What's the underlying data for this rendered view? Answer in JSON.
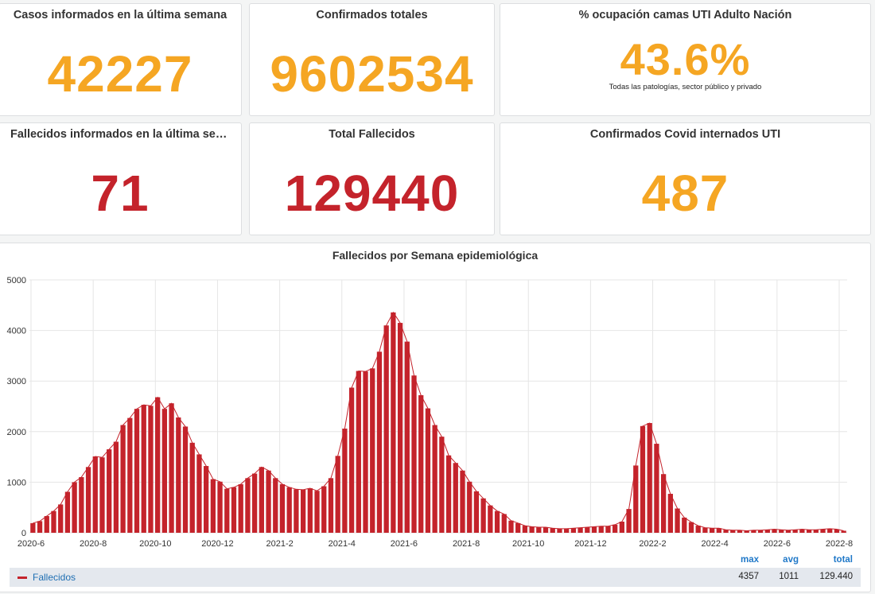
{
  "colors": {
    "orange": "#f5a623",
    "red": "#c4232b",
    "bar": "#c4232b",
    "bar_stripe": "#ffffff",
    "line": "#c4232b",
    "grid": "#e6e6e6",
    "axis_text": "#333333",
    "legend_text": "#1f6fb3",
    "legend_head": "#1f78c8"
  },
  "stats": {
    "casos_semana": {
      "title": "Casos informados en la última semana",
      "value": "42227"
    },
    "confirmados_totales": {
      "title": "Confirmados totales",
      "value": "9602534"
    },
    "ocupacion_uti": {
      "title": "% ocupación camas UTI Adulto Nación",
      "value": "43.6%",
      "subtitle": "Todas las patologías, sector público y privado"
    },
    "fallecidos_semana": {
      "title": "Fallecidos informados en la última semana",
      "value": "71"
    },
    "total_fallecidos": {
      "title": "Total Fallecidos",
      "value": "129440"
    },
    "internados_uti": {
      "title": "Confirmados Covid internados UTI",
      "value": "487"
    }
  },
  "legend": {
    "series_name": "Fallecidos",
    "max_label": "max",
    "avg_label": "avg",
    "total_label": "total",
    "max_value": "4357",
    "avg_value": "1011",
    "total_value": "129.440"
  },
  "chart_data": {
    "type": "bar",
    "title": "Fallecidos por Semana epidemiológica",
    "xlabel": "",
    "ylabel": "",
    "ylim": [
      0,
      5000
    ],
    "yticks": [
      0,
      1000,
      2000,
      3000,
      4000,
      5000
    ],
    "xticks": [
      "2020-6",
      "2020-8",
      "2020-10",
      "2020-12",
      "2021-2",
      "2021-4",
      "2021-6",
      "2021-8",
      "2021-10",
      "2021-12",
      "2022-2",
      "2022-4",
      "2022-6",
      "2022-8"
    ],
    "grid": true,
    "legend_position": "bottom",
    "series": [
      {
        "name": "Fallecidos",
        "overlay": "line",
        "values": [
          190,
          230,
          330,
          430,
          560,
          810,
          1000,
          1100,
          1300,
          1510,
          1490,
          1650,
          1800,
          2130,
          2270,
          2450,
          2530,
          2510,
          2680,
          2450,
          2560,
          2280,
          2100,
          1780,
          1550,
          1320,
          1060,
          1010,
          870,
          900,
          960,
          1080,
          1170,
          1300,
          1230,
          1080,
          960,
          900,
          860,
          850,
          880,
          830,
          920,
          1080,
          1520,
          2060,
          2870,
          3200,
          3190,
          3250,
          3580,
          4100,
          4357,
          4150,
          3780,
          3110,
          2720,
          2460,
          2130,
          1900,
          1530,
          1380,
          1230,
          1010,
          820,
          680,
          540,
          430,
          370,
          240,
          190,
          140,
          120,
          110,
          110,
          90,
          80,
          80,
          90,
          100,
          110,
          120,
          130,
          130,
          160,
          220,
          470,
          1330,
          2110,
          2170,
          1760,
          1160,
          770,
          480,
          300,
          210,
          140,
          100,
          90,
          90,
          60,
          50,
          50,
          40,
          50,
          50,
          60,
          70,
          60,
          50,
          60,
          70,
          60,
          60,
          70,
          80,
          70,
          40
        ]
      }
    ]
  }
}
